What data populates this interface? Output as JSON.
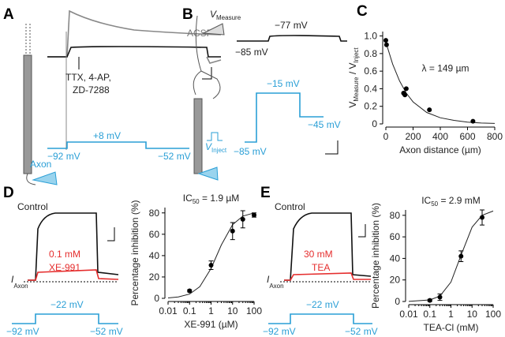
{
  "panels": {
    "a": {
      "letter": "A",
      "acsf": "ACSF",
      "drugs": [
        "TTX, 4-AP,",
        "ZD-7288"
      ],
      "axon": "Axon",
      "step": "+8 mV",
      "hold": "−92 mV",
      "end": "−52 mV"
    },
    "b": {
      "letter": "B",
      "v_measure": [
        "V",
        "Measure"
      ],
      "v_inject": [
        "V",
        "Inject"
      ],
      "top_step": "−77 mV",
      "top_hold": "−85 mV",
      "step": "−15 mV",
      "end": "−45 mV",
      "hold": "−85 mV"
    },
    "c": {
      "letter": "C"
    },
    "d": {
      "letter": "D",
      "control": "Control",
      "drug": [
        "0.1 mM",
        "XE-991"
      ],
      "current": [
        "I",
        "Axon"
      ],
      "step": "−22 mV",
      "hold": "−92 mV",
      "end": "−52 mV"
    },
    "e": {
      "letter": "E",
      "control": "Control",
      "drug": [
        "30 mM",
        "TEA"
      ],
      "current": [
        "I",
        "Axon"
      ],
      "step": "−22 mV",
      "hold": "−92 mV",
      "end": "−52 mV"
    }
  },
  "chart_data": [
    {
      "type": "scatter",
      "ylabel": [
        "V",
        "Measure",
        " / V",
        "Inject"
      ],
      "xlabel": "Axon distance (µm)",
      "annotation": "λ = 149 µm",
      "x": [
        0,
        5,
        130,
        140,
        150,
        320,
        640
      ],
      "values": [
        0.95,
        0.9,
        0.35,
        0.33,
        0.4,
        0.16,
        0.03
      ],
      "color": "#000000",
      "fit": {
        "x": [
          0,
          50,
          100,
          150,
          200,
          300,
          400,
          500,
          600,
          700,
          800
        ],
        "values": [
          0.93,
          0.68,
          0.49,
          0.35,
          0.25,
          0.13,
          0.07,
          0.04,
          0.02,
          0.01,
          0.005
        ]
      },
      "xlim": [
        0,
        800
      ],
      "xticks": [
        0,
        200,
        400,
        600,
        800
      ],
      "ylim": [
        0,
        1.05
      ],
      "yticks": [
        0,
        0.2,
        0.4,
        0.6,
        0.8,
        {
          "value": 1,
          "label": "1.0"
        }
      ],
      "xlog": false
    },
    {
      "type": "scatter",
      "title": [
        "IC",
        "50",
        " = 1.9 µM"
      ],
      "ylabel": "Percentage inhibition (%)",
      "xlabel": "XE-991 (µM)",
      "x": [
        0.1,
        1,
        10,
        30,
        100
      ],
      "values": [
        7,
        31,
        63,
        74,
        78
      ],
      "errors": [
        1,
        4,
        8,
        8,
        2
      ],
      "color": "#000000",
      "fit": {
        "x": [
          0.01,
          0.03,
          0.1,
          0.3,
          1,
          3,
          10,
          30,
          100
        ],
        "values": [
          0.4,
          1.3,
          4,
          11,
          28,
          50,
          69,
          77,
          80
        ]
      },
      "xlim": [
        0.01,
        100
      ],
      "xticks": [
        0.01,
        0.1,
        1,
        10,
        100
      ],
      "ylim": [
        0,
        85
      ],
      "yticks": [
        0,
        20,
        40,
        60,
        80
      ],
      "xlog": true
    },
    {
      "type": "scatter",
      "title": [
        "IC",
        "50",
        " = 2.9 mM"
      ],
      "ylabel": "Percentage inhibition (%)",
      "xlabel": "TEA-Cl (mM)",
      "x": [
        0.1,
        0.3,
        3,
        30
      ],
      "values": [
        1,
        4,
        42,
        78
      ],
      "errors": [
        1,
        3,
        5,
        7
      ],
      "color": "#000000",
      "fit": {
        "x": [
          0.01,
          0.1,
          0.3,
          1,
          3,
          10,
          30,
          100
        ],
        "values": [
          0.1,
          1.5,
          5,
          18,
          43,
          69,
          80,
          84
        ]
      },
      "xlim": [
        0.01,
        100
      ],
      "xticks": [
        0.01,
        0.1,
        1,
        10,
        100
      ],
      "ylim": [
        0,
        85
      ],
      "yticks": [
        0,
        20,
        40,
        60,
        80
      ],
      "xlog": true
    }
  ]
}
